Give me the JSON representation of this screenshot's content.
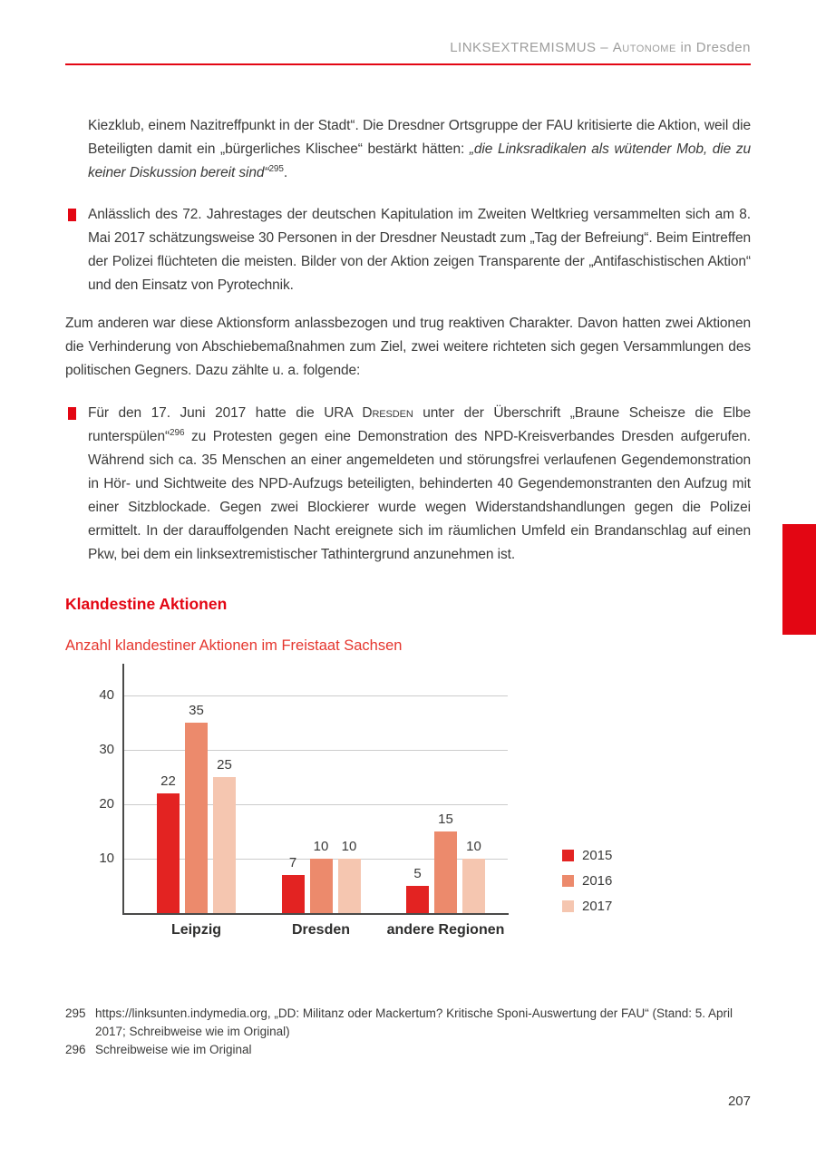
{
  "header": {
    "section_caps": "LINKSEXTREMISMUS – ",
    "section_smallcaps": "Autonome",
    "section_rest": " in Dresden"
  },
  "content": {
    "p1_parts": [
      {
        "t": "Kiezklub, einem Nazitreffpunkt in der Stadt“. Die Dresdner Ortsgruppe der FAU kritisierte die Aktion, weil die Beteiligten damit ein „bürgerliches Klischee“ bestärkt hätten: ",
        "s": "n"
      },
      {
        "t": "„die Linksradikalen als wütender Mob, die zu keiner Diskussion bereit sind“",
        "s": "i"
      },
      {
        "t": "295",
        "s": "sup"
      },
      {
        "t": ".",
        "s": "n"
      }
    ],
    "bullet1": "Anlässlich des 72. Jahrestages der deutschen Kapitulation im Zweiten Weltkrieg versammelten sich am 8. Mai 2017 schätzungsweise 30 Personen in der Dresdner Neustadt zum „Tag der Befreiung“. Beim Eintreffen der Polizei flüchteten die meisten. Bilder von der Aktion zeigen Transparente der „Antifaschistischen Aktion“ und den Einsatz von Pyrotechnik.",
    "p2": "Zum anderen war diese Aktionsform anlassbezogen und trug reaktiven Charakter. Davon hatten zwei Aktionen die Verhinderung von Abschiebemaßnahmen zum Ziel, zwei weitere richteten sich gegen Versammlungen des politischen Gegners. Dazu zählte u. a. folgende:",
    "bullet2_parts": [
      {
        "t": "Für den 17. Juni 2017 hatte die URA ",
        "s": "n"
      },
      {
        "t": "Dresden",
        "s": "sc"
      },
      {
        "t": " unter der Überschrift „Braune Scheisze die Elbe runterspülen“",
        "s": "n"
      },
      {
        "t": "296",
        "s": "sup"
      },
      {
        "t": " zu Protesten gegen eine Demonstration des NPD-Kreisverbandes Dresden aufgerufen. Während sich ca. 35 Menschen an einer angemeldeten und störungsfrei verlaufenen Gegendemonstration in Hör- und Sichtweite des NPD-Aufzugs beteiligten, behinderten 40 Gegendemonstranten den Aufzug mit einer Sitzblockade. Gegen zwei Blockierer wurde wegen Widerstandshandlungen gegen die Polizei ermittelt. In der darauffolgenden Nacht ereignete sich im räumlichen Umfeld ein Brandanschlag auf einen Pkw, bei dem ein linksextremistischer Tathintergrund anzunehmen ist.",
        "s": "n"
      }
    ],
    "section_heading": "Klandestine Aktionen"
  },
  "chart_data": {
    "type": "bar",
    "title": "Anzahl klandestiner Aktionen im Freistaat Sachsen",
    "categories": [
      "Leipzig",
      "Dresden",
      "andere Regionen"
    ],
    "series": [
      {
        "name": "2015",
        "color": "#e32322",
        "values": [
          22,
          7,
          5
        ]
      },
      {
        "name": "2016",
        "color": "#ec8a6c",
        "values": [
          35,
          10,
          15
        ]
      },
      {
        "name": "2017",
        "color": "#f5c6b0",
        "values": [
          25,
          10,
          10
        ]
      }
    ],
    "y_ticks": [
      10,
      20,
      30,
      40
    ],
    "ylim": [
      0,
      45
    ],
    "grid": true,
    "legend_position": "right"
  },
  "footnotes": [
    {
      "num": "295",
      "text": "https://linksunten.indymedia.org, „DD: Militanz oder Mackertum? Kritische Sponi-Auswertung der FAU“ (Stand: 5. April 2017; Schreibweise wie im Original)"
    },
    {
      "num": "296",
      "text": "Schreibweise wie im Original"
    }
  ],
  "page_number": "207",
  "colors": {
    "accent_red": "#e30613",
    "header_gray": "#9d9d9c",
    "body_text": "#3a3a39",
    "grid_gray": "#cccccc"
  }
}
